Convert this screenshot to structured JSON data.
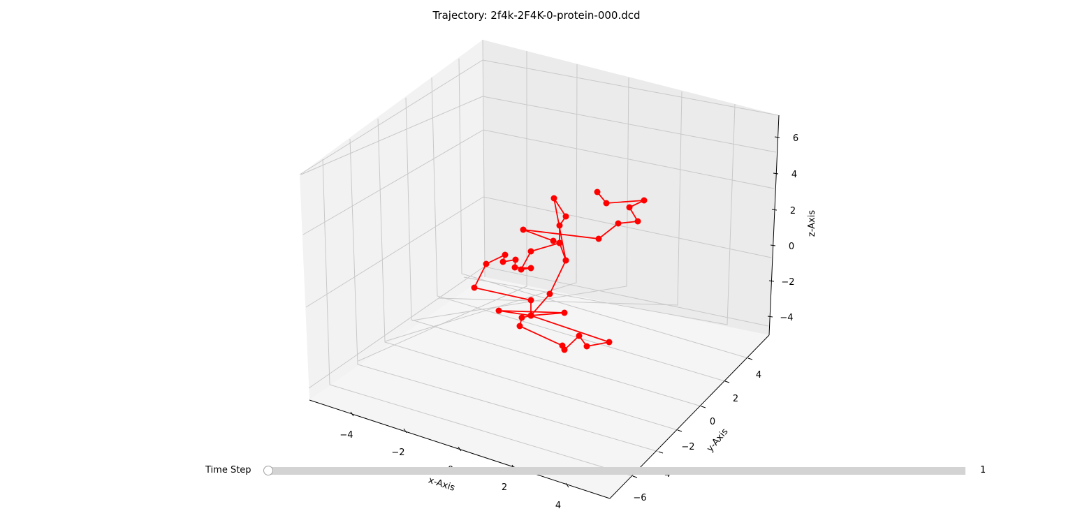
{
  "chart_data": {
    "type": "scatter",
    "title": "Trajectory: 2f4k-2F4K-0-protein-000.dcd",
    "xlabel": "x-Axis",
    "ylabel": "y-Axis",
    "zlabel": "z-Axis",
    "x_ticks": [
      "−4",
      "−2",
      "0",
      "2",
      "4"
    ],
    "y_ticks": [
      "−6",
      "−4",
      "−2",
      "0",
      "2",
      "4"
    ],
    "z_ticks": [
      "−4",
      "−2",
      "0",
      "2",
      "4",
      "6"
    ],
    "grid": true,
    "line_color": "#ff0000",
    "marker": "circle",
    "series": [
      {
        "projected_points": [
          [
            855,
            275
          ],
          [
            868,
            291
          ],
          [
            922,
            287
          ],
          [
            901,
            297
          ],
          [
            913,
            317
          ],
          [
            885,
            320
          ],
          [
            857,
            342
          ],
          [
            749,
            329
          ],
          [
            792,
            345
          ],
          [
            801,
            348
          ],
          [
            801,
            323
          ],
          [
            810,
            310
          ],
          [
            793,
            284
          ],
          [
            810,
            373
          ],
          [
            801,
            348
          ],
          [
            760,
            360
          ],
          [
            746,
            386
          ],
          [
            760,
            384
          ],
          [
            737,
            383
          ],
          [
            738,
            372
          ],
          [
            720,
            375
          ],
          [
            723,
            365
          ],
          [
            696,
            378
          ],
          [
            679,
            412
          ],
          [
            760,
            430
          ],
          [
            760,
            452
          ],
          [
            747,
            455
          ],
          [
            744,
            467
          ],
          [
            805,
            495
          ],
          [
            808,
            501
          ],
          [
            829,
            481
          ],
          [
            840,
            496
          ],
          [
            872,
            490
          ],
          [
            760,
            452
          ],
          [
            808,
            448
          ],
          [
            714,
            445
          ],
          [
            760,
            452
          ],
          [
            787,
            421
          ],
          [
            810,
            373
          ]
        ]
      }
    ]
  },
  "slider": {
    "label": "Time Step",
    "value": "1",
    "position_fraction": 0.0
  }
}
